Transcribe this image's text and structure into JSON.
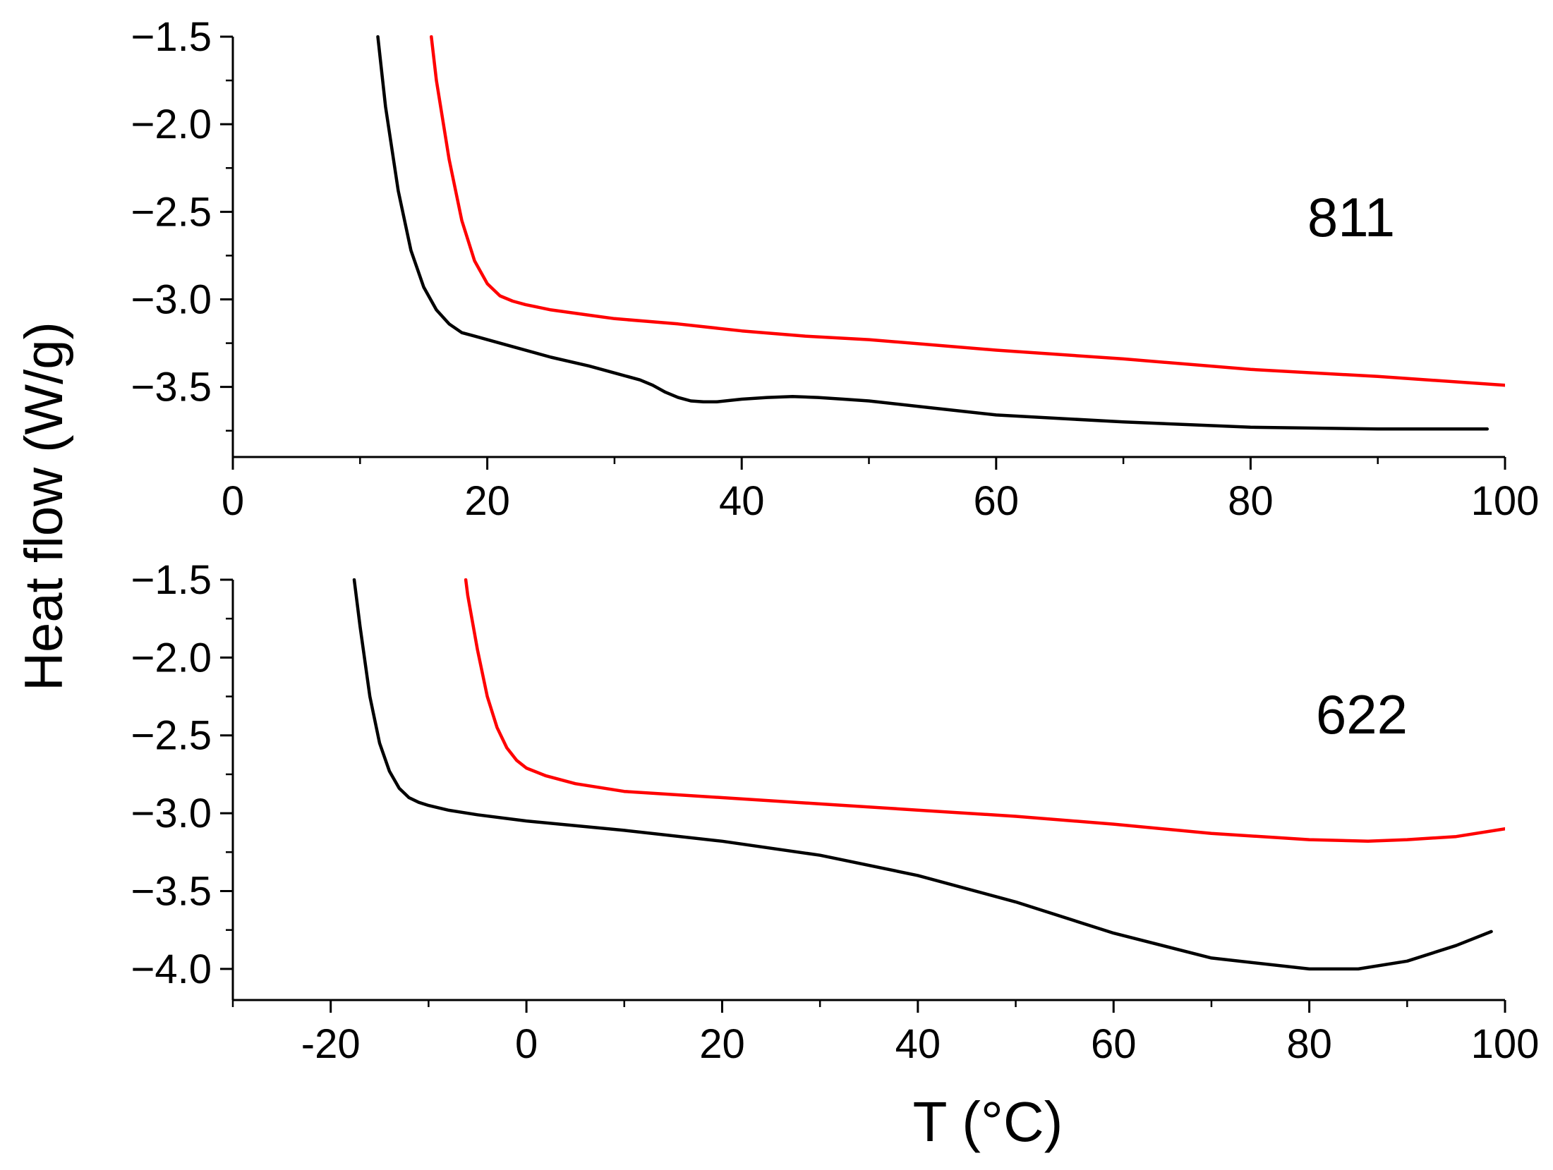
{
  "ylabel": "Heat flow (W/g)",
  "xlabel": "T (°C)",
  "colors": {
    "red_series": "#ff0000",
    "black_series": "#000000"
  },
  "chart_data": [
    {
      "type": "line",
      "annotation": "811",
      "xlim": [
        0,
        100
      ],
      "ylim": [
        -3.9,
        -1.5
      ],
      "xticks": [
        0,
        20,
        40,
        60,
        80,
        100
      ],
      "xtick_labels": [
        "0",
        "20",
        "40",
        "60",
        "80",
        "100"
      ],
      "yticks": [
        -1.5,
        -2.0,
        -2.5,
        -3.0,
        -3.5
      ],
      "ytick_labels": [
        "−1.5",
        "−2.0",
        "−2.5",
        "−3.0",
        "−3.5"
      ],
      "grid": false,
      "series": [
        {
          "name": "red",
          "color": "#ff0000",
          "x": [
            15.6,
            16,
            17,
            18,
            19,
            20,
            21,
            22,
            23,
            25,
            28,
            30,
            35,
            40,
            45,
            50,
            60,
            70,
            80,
            90,
            100
          ],
          "y": [
            -1.5,
            -1.75,
            -2.2,
            -2.55,
            -2.78,
            -2.91,
            -2.98,
            -3.01,
            -3.03,
            -3.06,
            -3.09,
            -3.11,
            -3.14,
            -3.18,
            -3.21,
            -3.23,
            -3.29,
            -3.34,
            -3.4,
            -3.44,
            -3.49
          ]
        },
        {
          "name": "black",
          "color": "#000000",
          "x": [
            11.4,
            12,
            13,
            14,
            15,
            16,
            17,
            18,
            19,
            20,
            22,
            25,
            28,
            30,
            32,
            33,
            34,
            35,
            36,
            37,
            38,
            40,
            42,
            44,
            46,
            48,
            50,
            55,
            60,
            70,
            80,
            90,
            98.6
          ],
          "y": [
            -1.5,
            -1.9,
            -2.38,
            -2.72,
            -2.93,
            -3.06,
            -3.14,
            -3.19,
            -3.21,
            -3.23,
            -3.27,
            -3.33,
            -3.38,
            -3.42,
            -3.46,
            -3.49,
            -3.53,
            -3.56,
            -3.58,
            -3.585,
            -3.585,
            -3.57,
            -3.56,
            -3.555,
            -3.56,
            -3.57,
            -3.58,
            -3.62,
            -3.66,
            -3.7,
            -3.73,
            -3.74,
            -3.74
          ]
        }
      ]
    },
    {
      "type": "line",
      "annotation": "622",
      "xlim": [
        -30,
        100
      ],
      "ylim": [
        -4.2,
        -1.5
      ],
      "xticks": [
        -20,
        0,
        20,
        40,
        60,
        80,
        100
      ],
      "xtick_labels": [
        "-20",
        "0",
        "20",
        "40",
        "60",
        "80",
        "100"
      ],
      "yticks": [
        -1.5,
        -2.0,
        -2.5,
        -3.0,
        -3.5,
        -4.0
      ],
      "ytick_labels": [
        "−1.5",
        "−2.0",
        "−2.5",
        "−3.0",
        "−3.5",
        "−4.0"
      ],
      "grid": false,
      "series": [
        {
          "name": "red",
          "color": "#ff0000",
          "x": [
            -6.2,
            -6,
            -5,
            -4,
            -3,
            -2,
            -1,
            0,
            2,
            5,
            10,
            20,
            30,
            40,
            50,
            60,
            70,
            80,
            86,
            90,
            95,
            100
          ],
          "y": [
            -1.5,
            -1.6,
            -1.95,
            -2.25,
            -2.45,
            -2.58,
            -2.66,
            -2.71,
            -2.76,
            -2.81,
            -2.86,
            -2.9,
            -2.94,
            -2.98,
            -3.02,
            -3.07,
            -3.13,
            -3.17,
            -3.18,
            -3.17,
            -3.15,
            -3.1
          ]
        },
        {
          "name": "black",
          "color": "#000000",
          "x": [
            -17.6,
            -17,
            -16,
            -15,
            -14,
            -13,
            -12,
            -11,
            -10,
            -8,
            -5,
            0,
            10,
            20,
            30,
            40,
            50,
            60,
            70,
            80,
            85,
            90,
            95,
            98.6
          ],
          "y": [
            -1.5,
            -1.8,
            -2.25,
            -2.55,
            -2.73,
            -2.84,
            -2.9,
            -2.93,
            -2.95,
            -2.98,
            -3.01,
            -3.05,
            -3.11,
            -3.18,
            -3.27,
            -3.4,
            -3.57,
            -3.77,
            -3.93,
            -4.0,
            -4.0,
            -3.95,
            -3.85,
            -3.76
          ]
        }
      ]
    }
  ]
}
